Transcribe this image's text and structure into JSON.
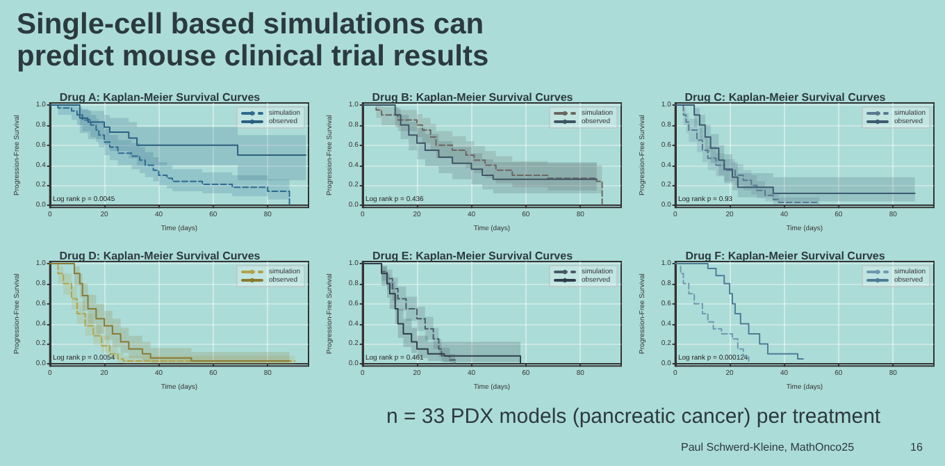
{
  "chart_data": [
    {
      "type": "other",
      "title": "Single-cell based simulations can predict mouse clinical trial results",
      "annotations": [
        "n = 33 PDX models (pancreatic cancer) per treatment",
        "Paul Schwerd-Kleine, MathOnco25",
        "16"
      ]
    },
    {
      "type": "step",
      "title": "Drug A: Kaplan-Meier Survival Curves",
      "xlabel": "Time (days)",
      "ylabel": "Progression-Free Survival",
      "annotations": [
        "Log rank p = 0.0045"
      ],
      "xlim": [
        0,
        95
      ],
      "xticks": [
        0,
        20,
        40,
        60,
        80
      ],
      "ylim": [
        -0.02,
        1.02
      ],
      "yticks": [
        {
          "value": 0,
          "label": "0.0"
        },
        {
          "value": 0.2,
          "label": "0.2"
        },
        {
          "value": 0.4,
          "label": "0.4"
        },
        {
          "value": 0.6,
          "label": "0.6"
        },
        {
          "value": 0.8,
          "label": "0.8"
        },
        {
          "value": 1,
          "label": "1.0"
        }
      ],
      "grid": true,
      "legend": "top right",
      "marker": "none",
      "series": [
        {
          "name": "simulation",
          "color": "#2f6a90",
          "line_style": "dashed",
          "x": [
            0,
            3,
            8,
            10,
            12,
            15,
            17,
            18,
            20,
            22,
            25,
            30,
            33,
            35,
            38,
            40,
            43,
            45,
            56,
            67,
            80,
            88
          ],
          "values": [
            1,
            0.97,
            0.94,
            0.9,
            0.85,
            0.8,
            0.75,
            0.7,
            0.63,
            0.58,
            0.52,
            0.49,
            0.45,
            0.4,
            0.35,
            0.3,
            0.27,
            0.24,
            0.21,
            0.18,
            0.14,
            0
          ],
          "lower": [
            1,
            0.9,
            0.85,
            0.8,
            0.74,
            0.68,
            0.63,
            0.58,
            0.5,
            0.45,
            0.4,
            0.36,
            0.32,
            0.28,
            0.24,
            0.2,
            0.17,
            0.14,
            0.12,
            0.09,
            0.06,
            0
          ],
          "upper": [
            1,
            1,
            1,
            0.98,
            0.95,
            0.9,
            0.86,
            0.82,
            0.76,
            0.7,
            0.65,
            0.62,
            0.58,
            0.53,
            0.48,
            0.43,
            0.4,
            0.36,
            0.33,
            0.3,
            0.26,
            0
          ]
        },
        {
          "name": "observed",
          "color": "#2b5f80",
          "line_style": "solid",
          "x": [
            0,
            10,
            11,
            14,
            20,
            22,
            29,
            32,
            69,
            94
          ],
          "values": [
            1,
            1,
            0.87,
            0.83,
            0.78,
            0.73,
            0.67,
            0.6,
            0.5,
            0.5
          ],
          "lower": [
            1,
            1,
            0.72,
            0.66,
            0.6,
            0.54,
            0.47,
            0.4,
            0.25,
            0.25
          ],
          "upper": [
            1,
            1,
            0.96,
            0.94,
            0.9,
            0.87,
            0.83,
            0.78,
            0.7,
            0.7
          ]
        }
      ]
    },
    {
      "type": "step",
      "title": "Drug B: Kaplan-Meier Survival Curves",
      "xlabel": "Time (days)",
      "ylabel": "Progression-Free Survival",
      "annotations": [
        "Log rank p = 0.436"
      ],
      "xlim": [
        0,
        95
      ],
      "xticks": [
        0,
        20,
        40,
        60,
        80
      ],
      "ylim": [
        -0.02,
        1.02
      ],
      "yticks": [
        {
          "value": 0,
          "label": "0.0"
        },
        {
          "value": 0.2,
          "label": "0.2"
        },
        {
          "value": 0.4,
          "label": "0.4"
        },
        {
          "value": 0.6,
          "label": "0.6"
        },
        {
          "value": 0.8,
          "label": "0.8"
        },
        {
          "value": 1,
          "label": "1.0"
        }
      ],
      "grid": true,
      "legend": "top right",
      "marker": "none",
      "series": [
        {
          "name": "simulation",
          "color": "#6b6660",
          "line_style": "dashed",
          "x": [
            0,
            5,
            7,
            13,
            20,
            22,
            25,
            27,
            33,
            38,
            41,
            45,
            49,
            55,
            68,
            86,
            88
          ],
          "values": [
            1,
            0.95,
            0.9,
            0.85,
            0.8,
            0.75,
            0.68,
            0.6,
            0.55,
            0.5,
            0.45,
            0.4,
            0.35,
            0.3,
            0.27,
            0.24,
            0
          ],
          "lower": [
            1,
            0.87,
            0.8,
            0.74,
            0.68,
            0.62,
            0.55,
            0.47,
            0.42,
            0.37,
            0.32,
            0.27,
            0.22,
            0.18,
            0.15,
            0.12,
            0
          ],
          "upper": [
            1,
            1,
            0.98,
            0.95,
            0.91,
            0.87,
            0.81,
            0.74,
            0.69,
            0.64,
            0.59,
            0.54,
            0.49,
            0.44,
            0.42,
            0.4,
            0
          ]
        },
        {
          "name": "observed",
          "color": "#3f5464",
          "line_style": "solid",
          "x": [
            0,
            10,
            12,
            14,
            17,
            20,
            23,
            28,
            33,
            40,
            44,
            48,
            86
          ],
          "values": [
            1,
            1,
            0.9,
            0.8,
            0.7,
            0.62,
            0.55,
            0.48,
            0.42,
            0.36,
            0.3,
            0.26,
            0.26
          ],
          "lower": [
            1,
            1,
            0.78,
            0.66,
            0.55,
            0.46,
            0.39,
            0.32,
            0.26,
            0.21,
            0.16,
            0.12,
            0.12
          ],
          "upper": [
            1,
            1,
            0.97,
            0.9,
            0.83,
            0.77,
            0.71,
            0.64,
            0.58,
            0.52,
            0.46,
            0.43,
            0.43
          ]
        }
      ]
    },
    {
      "type": "step",
      "title": "Drug C: Kaplan-Meier Survival Curves",
      "xlabel": "Time (days)",
      "ylabel": "Progression-Free Survival",
      "annotations": [
        "Log rank p = 0.93"
      ],
      "xlim": [
        0,
        95
      ],
      "xticks": [
        0,
        20,
        40,
        60,
        80
      ],
      "ylim": [
        -0.02,
        1.02
      ],
      "yticks": [
        {
          "value": 0,
          "label": "0.0"
        },
        {
          "value": 0.2,
          "label": "0.2"
        },
        {
          "value": 0.4,
          "label": "0.4"
        },
        {
          "value": 0.6,
          "label": "0.6"
        },
        {
          "value": 0.8,
          "label": "0.8"
        },
        {
          "value": 1,
          "label": "1.0"
        }
      ],
      "grid": true,
      "legend": "top right",
      "marker": "none",
      "series": [
        {
          "name": "simulation",
          "color": "#5a7890",
          "line_style": "dashed",
          "x": [
            0,
            3,
            4,
            5,
            8,
            10,
            12,
            15,
            18,
            22,
            25,
            28,
            30,
            33,
            36,
            38,
            42,
            53
          ],
          "values": [
            1,
            0.9,
            0.83,
            0.75,
            0.65,
            0.55,
            0.47,
            0.4,
            0.35,
            0.3,
            0.25,
            0.2,
            0.15,
            0.1,
            0.06,
            0.03,
            0.03,
            0.03
          ],
          "lower": [
            1,
            0.8,
            0.72,
            0.63,
            0.53,
            0.43,
            0.35,
            0.29,
            0.24,
            0.2,
            0.15,
            0.11,
            0.07,
            0.04,
            0.01,
            0,
            0,
            0
          ],
          "upper": [
            1,
            0.97,
            0.92,
            0.86,
            0.77,
            0.67,
            0.59,
            0.52,
            0.46,
            0.41,
            0.35,
            0.3,
            0.24,
            0.18,
            0.12,
            0.08,
            0.08,
            0.08
          ]
        },
        {
          "name": "observed",
          "color": "#3e5a70",
          "line_style": "solid",
          "x": [
            0,
            6,
            7,
            9,
            11,
            13,
            16,
            18,
            21,
            23,
            36,
            88
          ],
          "values": [
            1,
            1,
            0.9,
            0.8,
            0.68,
            0.57,
            0.45,
            0.36,
            0.28,
            0.18,
            0.12,
            0.12
          ],
          "lower": [
            1,
            1,
            0.78,
            0.66,
            0.53,
            0.42,
            0.3,
            0.22,
            0.15,
            0.08,
            0.04,
            0.04
          ],
          "upper": [
            1,
            1,
            0.97,
            0.9,
            0.8,
            0.71,
            0.6,
            0.51,
            0.43,
            0.32,
            0.28,
            0.28
          ]
        }
      ]
    },
    {
      "type": "step",
      "title": "Drug D: Kaplan-Meier Survival Curves",
      "xlabel": "Time (days)",
      "ylabel": "Progression-Free Survival",
      "annotations": [
        "Log rank p = 0.0054"
      ],
      "xlim": [
        0,
        95
      ],
      "xticks": [
        0,
        20,
        40,
        60,
        80
      ],
      "ylim": [
        -0.02,
        1.02
      ],
      "yticks": [
        {
          "value": 0,
          "label": "0.0"
        },
        {
          "value": 0.2,
          "label": "0.2"
        },
        {
          "value": 0.4,
          "label": "0.4"
        },
        {
          "value": 0.6,
          "label": "0.6"
        },
        {
          "value": 0.8,
          "label": "0.8"
        },
        {
          "value": 1,
          "label": "1.0"
        }
      ],
      "grid": true,
      "legend": "top right",
      "marker": "none",
      "series": [
        {
          "name": "simulation",
          "color": "#b3a24a",
          "line_style": "dashed",
          "x": [
            0,
            3,
            5,
            8,
            10,
            13,
            16,
            19,
            22,
            25,
            27,
            30,
            90
          ],
          "values": [
            1,
            0.9,
            0.8,
            0.65,
            0.5,
            0.38,
            0.28,
            0.18,
            0.1,
            0.05,
            0.03,
            0.03,
            0.03
          ],
          "lower": [
            1,
            0.8,
            0.69,
            0.54,
            0.4,
            0.28,
            0.19,
            0.11,
            0.05,
            0.01,
            0,
            0,
            0
          ],
          "upper": [
            1,
            0.97,
            0.9,
            0.77,
            0.62,
            0.5,
            0.39,
            0.28,
            0.18,
            0.11,
            0.08,
            0.08,
            0.08
          ]
        },
        {
          "name": "observed",
          "color": "#8a7a30",
          "line_style": "solid",
          "x": [
            0,
            6,
            9,
            11,
            12,
            14,
            17,
            20,
            23,
            26,
            29,
            34,
            37,
            52,
            88
          ],
          "values": [
            1,
            1,
            0.9,
            0.8,
            0.68,
            0.55,
            0.45,
            0.38,
            0.3,
            0.22,
            0.15,
            0.1,
            0.06,
            0.03,
            0.03
          ],
          "lower": [
            1,
            1,
            0.78,
            0.66,
            0.53,
            0.4,
            0.3,
            0.24,
            0.17,
            0.11,
            0.06,
            0.03,
            0.01,
            0,
            0
          ],
          "upper": [
            1,
            1,
            0.97,
            0.9,
            0.8,
            0.69,
            0.6,
            0.53,
            0.45,
            0.36,
            0.28,
            0.22,
            0.16,
            0.12,
            0.12
          ]
        }
      ]
    },
    {
      "type": "step",
      "title": "Drug E: Kaplan-Meier Survival Curves",
      "xlabel": "Time (days)",
      "ylabel": "Progression-Free Survival",
      "annotations": [
        "Log rank p = 0.461"
      ],
      "xlim": [
        0,
        95
      ],
      "xticks": [
        0,
        20,
        40,
        60,
        80
      ],
      "ylim": [
        -0.02,
        1.02
      ],
      "yticks": [
        {
          "value": 0,
          "label": "0.0"
        },
        {
          "value": 0.2,
          "label": "0.2"
        },
        {
          "value": 0.4,
          "label": "0.4"
        },
        {
          "value": 0.6,
          "label": "0.6"
        },
        {
          "value": 0.8,
          "label": "0.8"
        },
        {
          "value": 1,
          "label": "1.0"
        }
      ],
      "grid": true,
      "legend": "top right",
      "marker": "none",
      "series": [
        {
          "name": "simulation",
          "color": "#4a5a68",
          "line_style": "dashed",
          "x": [
            0,
            5,
            7,
            9,
            11,
            13,
            16,
            20,
            23,
            26,
            28,
            29,
            32,
            34
          ],
          "values": [
            1,
            1,
            0.92,
            0.85,
            0.75,
            0.65,
            0.55,
            0.45,
            0.35,
            0.25,
            0.15,
            0.08,
            0.04,
            0
          ],
          "lower": [
            1,
            1,
            0.83,
            0.74,
            0.63,
            0.53,
            0.43,
            0.33,
            0.24,
            0.15,
            0.07,
            0.02,
            0,
            0
          ],
          "upper": [
            1,
            1,
            0.98,
            0.94,
            0.86,
            0.77,
            0.67,
            0.57,
            0.47,
            0.36,
            0.25,
            0.16,
            0.1,
            0
          ]
        },
        {
          "name": "observed",
          "color": "#303e4a",
          "line_style": "solid",
          "x": [
            0,
            5,
            7,
            9,
            10,
            12,
            13,
            15,
            18,
            20,
            24,
            30,
            58
          ],
          "values": [
            1,
            1,
            0.9,
            0.8,
            0.7,
            0.55,
            0.4,
            0.3,
            0.22,
            0.15,
            0.1,
            0.08,
            0
          ],
          "lower": [
            1,
            1,
            0.78,
            0.66,
            0.55,
            0.4,
            0.26,
            0.17,
            0.11,
            0.06,
            0.03,
            0.02,
            0
          ],
          "upper": [
            1,
            1,
            0.97,
            0.9,
            0.82,
            0.69,
            0.55,
            0.45,
            0.36,
            0.28,
            0.22,
            0.22,
            0
          ]
        }
      ]
    },
    {
      "type": "step",
      "title": "Drug F: Kaplan-Meier Survival Curves",
      "xlabel": "Time (days)",
      "ylabel": "Progression-Free Survival",
      "annotations": [
        "Log rank p = 0.000124"
      ],
      "xlim": [
        0,
        95
      ],
      "xticks": [
        0,
        20,
        40,
        60,
        80
      ],
      "ylim": [
        -0.02,
        1.02
      ],
      "yticks": [
        {
          "value": 0,
          "label": "0.0"
        },
        {
          "value": 0.2,
          "label": "0.2"
        },
        {
          "value": 0.4,
          "label": "0.4"
        },
        {
          "value": 0.6,
          "label": "0.6"
        },
        {
          "value": 0.8,
          "label": "0.8"
        },
        {
          "value": 1,
          "label": "1.0"
        }
      ],
      "grid": true,
      "legend": "top right",
      "marker": "none",
      "series": [
        {
          "name": "simulation",
          "color": "#6f98b0",
          "line_style": "dashed",
          "x": [
            0,
            1,
            2,
            3,
            5,
            7,
            10,
            12,
            14,
            17,
            21,
            23,
            25,
            27
          ],
          "values": [
            1,
            1,
            0.9,
            0.8,
            0.7,
            0.6,
            0.5,
            0.42,
            0.35,
            0.3,
            0.25,
            0.15,
            0.08,
            0.03
          ]
        },
        {
          "name": "observed",
          "color": "#4f7c96",
          "line_style": "solid",
          "x": [
            0,
            11,
            12,
            15,
            18,
            20,
            21,
            22,
            24,
            27,
            31,
            34,
            45,
            47
          ],
          "values": [
            1,
            1,
            0.95,
            0.88,
            0.8,
            0.7,
            0.6,
            0.5,
            0.4,
            0.3,
            0.2,
            0.1,
            0.05,
            0.05
          ]
        }
      ]
    }
  ]
}
